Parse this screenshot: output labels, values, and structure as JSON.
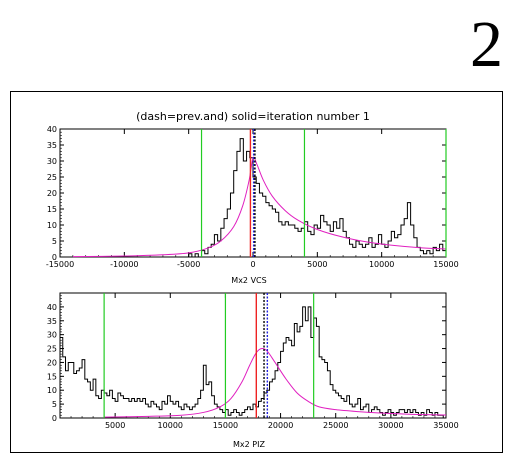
{
  "page_number": "2",
  "colors": {
    "histogram": "#000000",
    "fit": "#e020c0",
    "cut_lines": "#22cc22",
    "solid_marker": "#ee2222",
    "dash_marker": "#2222dd"
  },
  "chart_data": [
    {
      "type": "histogram",
      "title": "(dash=prev.and) solid=iteration number  1",
      "xlabel": "Mx2 VCS",
      "ylabel": "",
      "xlim": [
        -15000,
        15000
      ],
      "ylim": [
        0,
        40
      ],
      "xticks": [
        "-15000",
        "-10000",
        "-5000",
        "0",
        "5000",
        "10000",
        "15000"
      ],
      "yticks": [
        "0",
        "5",
        "10",
        "15",
        "20",
        "25",
        "30",
        "35",
        "40"
      ],
      "bin_start": -15000,
      "bin_width": 250,
      "counts": [
        0,
        0,
        0,
        0,
        0,
        0,
        0,
        0,
        0,
        0,
        0,
        0,
        0,
        0,
        0,
        0,
        0,
        0,
        0,
        0,
        0,
        0,
        0,
        0,
        0,
        0,
        0,
        0,
        0,
        0,
        0,
        0,
        0,
        0,
        0,
        0,
        0,
        0,
        0,
        0,
        1,
        0,
        1,
        0,
        2,
        1,
        3,
        4,
        7,
        5,
        9,
        12,
        15,
        20,
        27,
        33,
        37,
        30,
        33,
        31,
        25,
        23,
        20,
        19,
        17,
        16,
        15,
        14,
        11,
        10,
        11,
        10,
        10,
        9,
        8,
        9,
        11,
        8,
        7,
        10,
        9,
        13,
        11,
        10,
        8,
        11,
        9,
        12,
        8,
        6,
        4,
        3,
        5,
        4,
        3,
        4,
        6,
        3,
        4,
        7,
        4,
        3,
        5,
        8,
        6,
        7,
        10,
        12,
        17,
        10,
        6,
        3,
        2,
        1,
        2,
        1,
        3,
        2,
        4,
        2
      ],
      "fit_line": {
        "x": [
          -14000,
          -10000,
          -7000,
          -5000,
          -3500,
          -2500,
          -1500,
          -800,
          -300,
          0,
          300,
          800,
          1500,
          2500,
          3500,
          5000,
          7000,
          9000,
          11000,
          13000,
          15000
        ],
        "y": [
          0.1,
          0.3,
          0.7,
          1.3,
          2.8,
          5,
          9.5,
          16,
          24,
          31,
          29,
          24,
          19,
          14.5,
          11.5,
          8.6,
          6.2,
          4.6,
          3.6,
          2.9,
          2.5
        ]
      },
      "vertical_lines": [
        {
          "x": -4000,
          "color": "green"
        },
        {
          "x": 4000,
          "color": "green"
        },
        {
          "x": 15000,
          "color": "green"
        },
        {
          "x": -200,
          "color": "red"
        },
        {
          "x": 50,
          "color": "blue"
        },
        {
          "x": 150,
          "color": "black"
        }
      ]
    },
    {
      "type": "histogram",
      "title": "",
      "xlabel": "Mx2 PIZ",
      "ylabel": "",
      "xlim": [
        0,
        35000
      ],
      "ylim": [
        0,
        45
      ],
      "xticks": [
        "5000",
        "10000",
        "15000",
        "20000",
        "25000",
        "30000",
        "35000"
      ],
      "yticks": [
        "0",
        "5",
        "10",
        "15",
        "20",
        "25",
        "30",
        "35",
        "40"
      ],
      "bin_start": 0,
      "bin_width": 250,
      "counts": [
        29,
        22,
        17,
        20,
        20,
        16,
        17,
        18,
        21,
        14,
        13,
        10,
        14,
        8,
        7,
        10,
        9,
        8,
        10,
        7,
        6,
        9,
        8,
        7,
        7,
        6,
        7,
        6,
        7,
        6,
        7,
        5,
        4,
        6,
        5,
        4,
        3,
        6,
        5,
        8,
        6,
        5,
        6,
        4,
        3,
        5,
        4,
        3,
        4,
        5,
        7,
        10,
        19,
        12,
        13,
        8,
        5,
        4,
        3,
        2,
        3,
        1,
        2,
        3,
        2,
        1,
        2,
        3,
        4,
        3,
        5,
        4,
        6,
        7,
        9,
        10,
        13,
        14,
        17,
        20,
        24,
        27,
        29,
        28,
        26,
        34,
        31,
        33,
        40,
        35,
        40,
        29,
        36,
        33,
        22,
        21,
        20,
        17,
        12,
        10,
        9,
        8,
        7,
        6,
        8,
        5,
        4,
        5,
        7,
        3,
        4,
        5,
        2,
        3,
        4,
        3,
        2,
        1,
        2,
        3,
        2,
        1,
        2,
        3,
        3,
        2,
        3,
        2,
        3,
        2,
        1,
        2,
        1,
        3,
        2,
        1,
        2,
        1,
        1,
        0
      ],
      "fit_line": {
        "x": [
          4000,
          8000,
          11000,
          13000,
          14500,
          15500,
          16500,
          17200,
          17800,
          18300,
          18800,
          19500,
          20500,
          21500,
          22500,
          23500,
          25000,
          27000,
          29000,
          32000,
          35000
        ],
        "y": [
          0.3,
          0.6,
          1,
          2,
          4,
          7,
          13,
          19,
          23.5,
          25,
          24,
          20,
          14,
          9,
          6,
          4,
          3,
          2.3,
          1.8,
          1.3,
          1.1
        ]
      },
      "vertical_lines": [
        {
          "x": 4000,
          "color": "green"
        },
        {
          "x": 15000,
          "color": "green"
        },
        {
          "x": 23000,
          "color": "green"
        },
        {
          "x": 17800,
          "color": "red"
        },
        {
          "x": 18500,
          "color": "black"
        },
        {
          "x": 18800,
          "color": "blue"
        }
      ]
    }
  ]
}
